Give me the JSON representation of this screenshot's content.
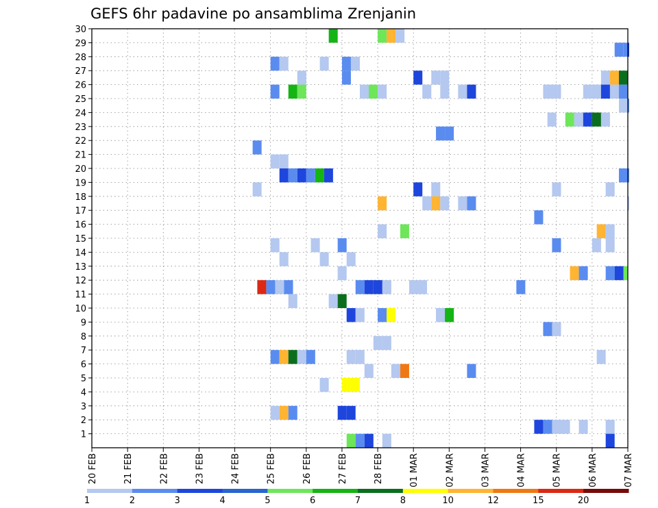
{
  "chart_data": {
    "type": "heatmap",
    "title": "GEFS 6hr padavine po ansamblima Zrenjanin",
    "xlabel": "",
    "ylabel": "",
    "x_ticks": [
      "20 FEB",
      "21 FEB",
      "22 FEB",
      "23 FEB",
      "24 FEB",
      "25 FEB",
      "26 FEB",
      "27 FEB",
      "28 FEB",
      "01 MAR",
      "02 MAR",
      "03 MAR",
      "04 MAR",
      "05 MAR",
      "06 MAR",
      "07 MAR"
    ],
    "x_range_days": [
      0,
      15
    ],
    "y_ticks": [
      1,
      2,
      3,
      4,
      5,
      6,
      7,
      8,
      9,
      10,
      11,
      12,
      13,
      14,
      15,
      16,
      17,
      18,
      19,
      20,
      21,
      22,
      23,
      24,
      25,
      26,
      27,
      28,
      29,
      30
    ],
    "y_range": [
      0,
      30
    ],
    "grid": true,
    "color_scale": {
      "levels": [
        "1",
        "2",
        "3",
        "4",
        "5",
        "6",
        "7",
        "8",
        "10",
        "12",
        "15",
        "20"
      ],
      "colors": [
        "#b4c8f0",
        "#5a8cf0",
        "#1e46dc",
        "#2864d2",
        "#6ee65a",
        "#14b414",
        "#0a6e1e",
        "#ffff00",
        "#ffb432",
        "#f07814",
        "#dc2814",
        "#780a0a"
      ]
    },
    "cells": [
      {
        "m": 29,
        "x": 6.63,
        "c": 5
      },
      {
        "m": 29,
        "x": 8.0,
        "c": 4
      },
      {
        "m": 29,
        "x": 8.25,
        "c": 8
      },
      {
        "m": 29,
        "x": 8.5,
        "c": 0
      },
      {
        "m": 28,
        "x": 14.63,
        "c": 1
      },
      {
        "m": 28,
        "x": 14.88,
        "c": 1
      },
      {
        "m": 28,
        "x": 15.0,
        "c": 2
      },
      {
        "m": 27,
        "x": 5.0,
        "c": 1
      },
      {
        "m": 27,
        "x": 5.25,
        "c": 0
      },
      {
        "m": 27,
        "x": 6.38,
        "c": 0
      },
      {
        "m": 27,
        "x": 7.0,
        "c": 1
      },
      {
        "m": 27,
        "x": 7.25,
        "c": 0
      },
      {
        "m": 26,
        "x": 5.75,
        "c": 0
      },
      {
        "m": 26,
        "x": 7.0,
        "c": 1
      },
      {
        "m": 26,
        "x": 9.0,
        "c": 2
      },
      {
        "m": 26,
        "x": 9.5,
        "c": 0
      },
      {
        "m": 26,
        "x": 9.75,
        "c": 0
      },
      {
        "m": 26,
        "x": 14.25,
        "c": 0
      },
      {
        "m": 26,
        "x": 14.5,
        "c": 8
      },
      {
        "m": 26,
        "x": 14.75,
        "c": 6
      },
      {
        "m": 25,
        "x": 5.0,
        "c": 1
      },
      {
        "m": 25,
        "x": 5.5,
        "c": 5
      },
      {
        "m": 25,
        "x": 5.75,
        "c": 4
      },
      {
        "m": 25,
        "x": 7.5,
        "c": 0
      },
      {
        "m": 25,
        "x": 7.75,
        "c": 4
      },
      {
        "m": 25,
        "x": 8.0,
        "c": 0
      },
      {
        "m": 25,
        "x": 9.25,
        "c": 0
      },
      {
        "m": 25,
        "x": 9.75,
        "c": 0
      },
      {
        "m": 25,
        "x": 10.25,
        "c": 0
      },
      {
        "m": 25,
        "x": 10.5,
        "c": 2
      },
      {
        "m": 25,
        "x": 12.63,
        "c": 0
      },
      {
        "m": 25,
        "x": 12.88,
        "c": 0
      },
      {
        "m": 25,
        "x": 13.75,
        "c": 0
      },
      {
        "m": 25,
        "x": 14.0,
        "c": 0
      },
      {
        "m": 25,
        "x": 14.25,
        "c": 2
      },
      {
        "m": 25,
        "x": 14.5,
        "c": 0
      },
      {
        "m": 25,
        "x": 14.75,
        "c": 1
      },
      {
        "m": 24,
        "x": 14.75,
        "c": 0
      },
      {
        "m": 24,
        "x": 15.0,
        "c": 1
      },
      {
        "m": 23,
        "x": 12.75,
        "c": 0
      },
      {
        "m": 23,
        "x": 13.25,
        "c": 4
      },
      {
        "m": 23,
        "x": 13.5,
        "c": 0
      },
      {
        "m": 23,
        "x": 13.75,
        "c": 2
      },
      {
        "m": 23,
        "x": 14.0,
        "c": 6
      },
      {
        "m": 23,
        "x": 14.25,
        "c": 0
      },
      {
        "m": 22,
        "x": 9.63,
        "c": 1
      },
      {
        "m": 22,
        "x": 9.88,
        "c": 1
      },
      {
        "m": 21,
        "x": 4.5,
        "c": 1
      },
      {
        "m": 20,
        "x": 5.0,
        "c": 0
      },
      {
        "m": 20,
        "x": 5.25,
        "c": 0
      },
      {
        "m": 19,
        "x": 5.25,
        "c": 2
      },
      {
        "m": 19,
        "x": 5.5,
        "c": 1
      },
      {
        "m": 19,
        "x": 5.75,
        "c": 2
      },
      {
        "m": 19,
        "x": 6.0,
        "c": 1
      },
      {
        "m": 19,
        "x": 6.25,
        "c": 5
      },
      {
        "m": 19,
        "x": 6.5,
        "c": 2
      },
      {
        "m": 19,
        "x": 14.75,
        "c": 1
      },
      {
        "m": 19,
        "x": 15.0,
        "c": 1
      },
      {
        "m": 18,
        "x": 4.5,
        "c": 0
      },
      {
        "m": 18,
        "x": 9.0,
        "c": 2
      },
      {
        "m": 18,
        "x": 9.5,
        "c": 0
      },
      {
        "m": 18,
        "x": 12.88,
        "c": 0
      },
      {
        "m": 18,
        "x": 14.38,
        "c": 0
      },
      {
        "m": 17,
        "x": 8.0,
        "c": 8
      },
      {
        "m": 17,
        "x": 9.25,
        "c": 0
      },
      {
        "m": 17,
        "x": 9.5,
        "c": 8
      },
      {
        "m": 17,
        "x": 9.75,
        "c": 0
      },
      {
        "m": 17,
        "x": 10.25,
        "c": 0
      },
      {
        "m": 17,
        "x": 10.5,
        "c": 1
      },
      {
        "m": 17,
        "x": 15.0,
        "c": 0
      },
      {
        "m": 16,
        "x": 12.38,
        "c": 1
      },
      {
        "m": 15,
        "x": 8.0,
        "c": 0
      },
      {
        "m": 15,
        "x": 8.63,
        "c": 4
      },
      {
        "m": 15,
        "x": 14.13,
        "c": 8
      },
      {
        "m": 15,
        "x": 14.38,
        "c": 0
      },
      {
        "m": 14,
        "x": 5.0,
        "c": 0
      },
      {
        "m": 14,
        "x": 6.13,
        "c": 0
      },
      {
        "m": 14,
        "x": 6.88,
        "c": 1
      },
      {
        "m": 14,
        "x": 12.88,
        "c": 1
      },
      {
        "m": 14,
        "x": 14.0,
        "c": 0
      },
      {
        "m": 14,
        "x": 14.38,
        "c": 0
      },
      {
        "m": 13,
        "x": 5.25,
        "c": 0
      },
      {
        "m": 13,
        "x": 6.38,
        "c": 0
      },
      {
        "m": 13,
        "x": 7.13,
        "c": 0
      },
      {
        "m": 12,
        "x": 6.88,
        "c": 0
      },
      {
        "m": 12,
        "x": 13.38,
        "c": 8
      },
      {
        "m": 12,
        "x": 13.63,
        "c": 1
      },
      {
        "m": 12,
        "x": 14.38,
        "c": 1
      },
      {
        "m": 12,
        "x": 14.63,
        "c": 2
      },
      {
        "m": 12,
        "x": 14.88,
        "c": 4
      },
      {
        "m": 11,
        "x": 4.63,
        "c": 10
      },
      {
        "m": 11,
        "x": 4.88,
        "c": 1
      },
      {
        "m": 11,
        "x": 5.13,
        "c": 0
      },
      {
        "m": 11,
        "x": 5.38,
        "c": 1
      },
      {
        "m": 11,
        "x": 7.38,
        "c": 1
      },
      {
        "m": 11,
        "x": 7.63,
        "c": 2
      },
      {
        "m": 11,
        "x": 7.88,
        "c": 2
      },
      {
        "m": 11,
        "x": 8.13,
        "c": 0
      },
      {
        "m": 11,
        "x": 8.88,
        "c": 0
      },
      {
        "m": 11,
        "x": 9.13,
        "c": 0
      },
      {
        "m": 11,
        "x": 11.88,
        "c": 1
      },
      {
        "m": 10,
        "x": 5.5,
        "c": 0
      },
      {
        "m": 10,
        "x": 6.63,
        "c": 0
      },
      {
        "m": 10,
        "x": 6.88,
        "c": 6
      },
      {
        "m": 9,
        "x": 7.13,
        "c": 2
      },
      {
        "m": 9,
        "x": 7.38,
        "c": 0
      },
      {
        "m": 9,
        "x": 8.0,
        "c": 1
      },
      {
        "m": 9,
        "x": 8.25,
        "c": 7
      },
      {
        "m": 9,
        "x": 9.63,
        "c": 0
      },
      {
        "m": 9,
        "x": 9.88,
        "c": 5
      },
      {
        "m": 8,
        "x": 12.63,
        "c": 1
      },
      {
        "m": 8,
        "x": 12.88,
        "c": 0
      },
      {
        "m": 7,
        "x": 7.88,
        "c": 0
      },
      {
        "m": 7,
        "x": 8.13,
        "c": 0
      },
      {
        "m": 6,
        "x": 5.0,
        "c": 1
      },
      {
        "m": 6,
        "x": 5.25,
        "c": 8
      },
      {
        "m": 6,
        "x": 5.5,
        "c": 6
      },
      {
        "m": 6,
        "x": 5.75,
        "c": 0
      },
      {
        "m": 6,
        "x": 6.0,
        "c": 1
      },
      {
        "m": 6,
        "x": 7.13,
        "c": 0
      },
      {
        "m": 6,
        "x": 7.38,
        "c": 0
      },
      {
        "m": 6,
        "x": 14.13,
        "c": 0
      },
      {
        "m": 5,
        "x": 7.63,
        "c": 0
      },
      {
        "m": 5,
        "x": 8.38,
        "c": 0
      },
      {
        "m": 5,
        "x": 8.63,
        "c": 9
      },
      {
        "m": 5,
        "x": 10.5,
        "c": 1
      },
      {
        "m": 4,
        "x": 6.38,
        "c": 0
      },
      {
        "m": 4,
        "x": 7.0,
        "c": 7
      },
      {
        "m": 4,
        "x": 7.25,
        "c": 7
      },
      {
        "m": 2,
        "x": 5.0,
        "c": 0
      },
      {
        "m": 2,
        "x": 5.25,
        "c": 8
      },
      {
        "m": 2,
        "x": 5.5,
        "c": 1
      },
      {
        "m": 2,
        "x": 6.88,
        "c": 2
      },
      {
        "m": 2,
        "x": 7.13,
        "c": 2
      },
      {
        "m": 1,
        "x": 12.38,
        "c": 2
      },
      {
        "m": 1,
        "x": 12.63,
        "c": 1
      },
      {
        "m": 1,
        "x": 12.88,
        "c": 0
      },
      {
        "m": 1,
        "x": 13.13,
        "c": 0
      },
      {
        "m": 1,
        "x": 13.63,
        "c": 0
      },
      {
        "m": 1,
        "x": 14.38,
        "c": 0
      },
      {
        "m": 0,
        "x": 7.13,
        "c": 4
      },
      {
        "m": 0,
        "x": 7.38,
        "c": 1
      },
      {
        "m": 0,
        "x": 7.63,
        "c": 2
      },
      {
        "m": 0,
        "x": 8.13,
        "c": 0
      },
      {
        "m": 0,
        "x": 14.38,
        "c": 2
      }
    ]
  }
}
